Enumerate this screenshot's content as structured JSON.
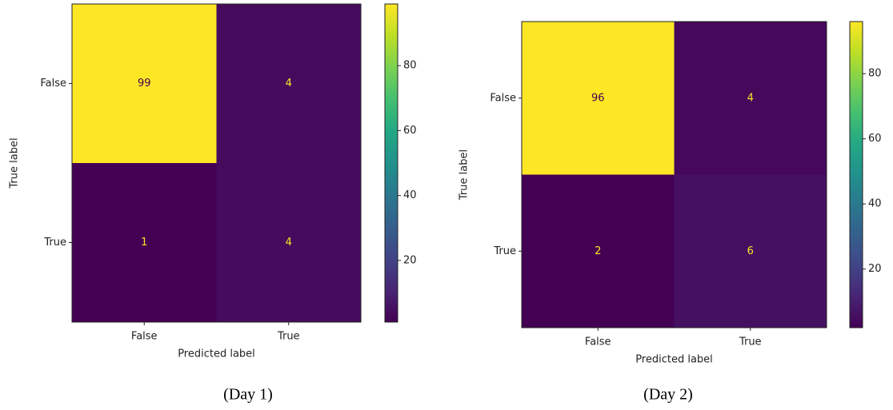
{
  "chart_data": [
    {
      "type": "heatmap",
      "caption": "(Day 1)",
      "xlabel": "Predicted label",
      "ylabel": "True label",
      "x": [
        "False",
        "True"
      ],
      "y": [
        "False",
        "True"
      ],
      "z": [
        [
          99,
          4
        ],
        [
          1,
          4
        ]
      ],
      "colormap": "viridis",
      "clim": [
        1,
        99
      ],
      "cticks": [
        20,
        40,
        60,
        80
      ]
    },
    {
      "type": "heatmap",
      "caption": "(Day 2)",
      "xlabel": "Predicted label",
      "ylabel": "True label",
      "x": [
        "False",
        "True"
      ],
      "y": [
        "False",
        "True"
      ],
      "z": [
        [
          96,
          4
        ],
        [
          2,
          6
        ]
      ],
      "colormap": "viridis",
      "clim": [
        2,
        96
      ],
      "cticks": [
        20,
        40,
        60,
        80
      ]
    }
  ]
}
